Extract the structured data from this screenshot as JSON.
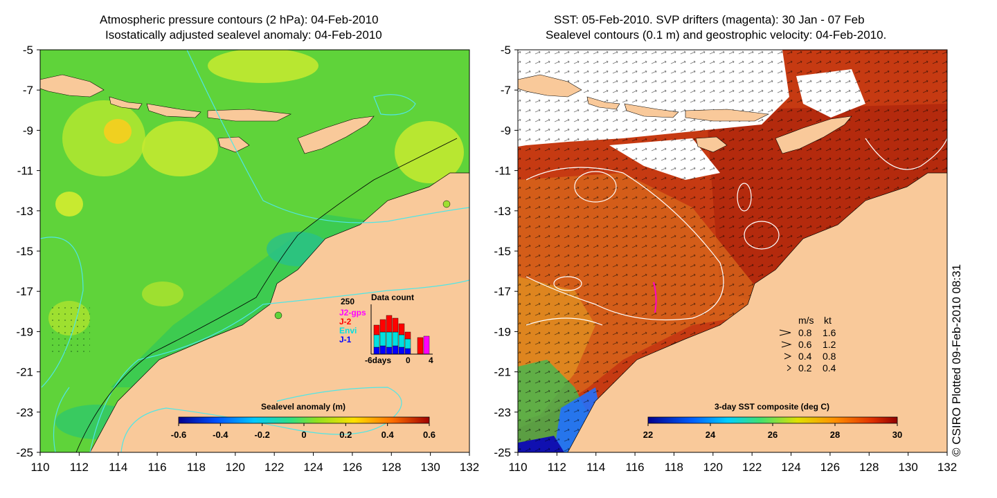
{
  "left_panel": {
    "title_line1": "Atmospheric pressure contours (2 hPa): 04-Feb-2010",
    "title_line2": "Isostatically adjusted sealevel anomaly: 04-Feb-2010",
    "x_ticks": [
      "110",
      "112",
      "114",
      "116",
      "118",
      "120",
      "122",
      "124",
      "126",
      "128",
      "130",
      "132"
    ],
    "y_ticks": [
      "-5",
      "-7",
      "-9",
      "-11",
      "-13",
      "-15",
      "-17",
      "-19",
      "-21",
      "-23",
      "-25"
    ],
    "colorbar": {
      "label": "Sealevel anomaly (m)",
      "ticks": [
        "-0.6",
        "-0.4",
        "-0.2",
        "0",
        "0.2",
        "0.4",
        "0.6"
      ]
    },
    "data_count": {
      "title": "Data count",
      "max_label": "250",
      "legend": [
        {
          "name": "J2-gps",
          "color": "#ff00ff"
        },
        {
          "name": "J-2",
          "color": "#ff0000"
        },
        {
          "name": "Envi",
          "color": "#00e0e0"
        },
        {
          "name": "J-1",
          "color": "#0000ff"
        }
      ],
      "x_ticks": [
        "-6days",
        "0",
        "4"
      ]
    }
  },
  "right_panel": {
    "title_line1": "SST: 05-Feb-2010. SVP drifters (magenta): 30 Jan - 07 Feb",
    "title_line2": "Sealevel contours (0.1 m) and geostrophic velocity: 04-Feb-2010.",
    "x_ticks": [
      "110",
      "112",
      "114",
      "116",
      "118",
      "120",
      "122",
      "124",
      "126",
      "128",
      "130",
      "132"
    ],
    "y_ticks": [
      "-5",
      "-7",
      "-9",
      "-11",
      "-13",
      "-15",
      "-17",
      "-19",
      "-21",
      "-23",
      "-25"
    ],
    "colorbar": {
      "label": "3-day SST composite (deg C)",
      "ticks": [
        "22",
        "24",
        "26",
        "28",
        "30"
      ]
    },
    "velocity_legend": {
      "header_ms": "m/s",
      "header_kt": "kt",
      "rows": [
        {
          "ms": "0.8",
          "kt": "1.6"
        },
        {
          "ms": "0.6",
          "kt": "1.2"
        },
        {
          "ms": "0.4",
          "kt": "0.8"
        },
        {
          "ms": "0.2",
          "kt": "0.4"
        }
      ]
    }
  },
  "credit": "© CSIRO Plotted 09-Feb-2010 08:31",
  "colors": {
    "land": "#f9c99a",
    "ocean_left": "#5fd33a",
    "ocean_right": "#c63a12",
    "contour_cyan": "#4fe6e6"
  }
}
